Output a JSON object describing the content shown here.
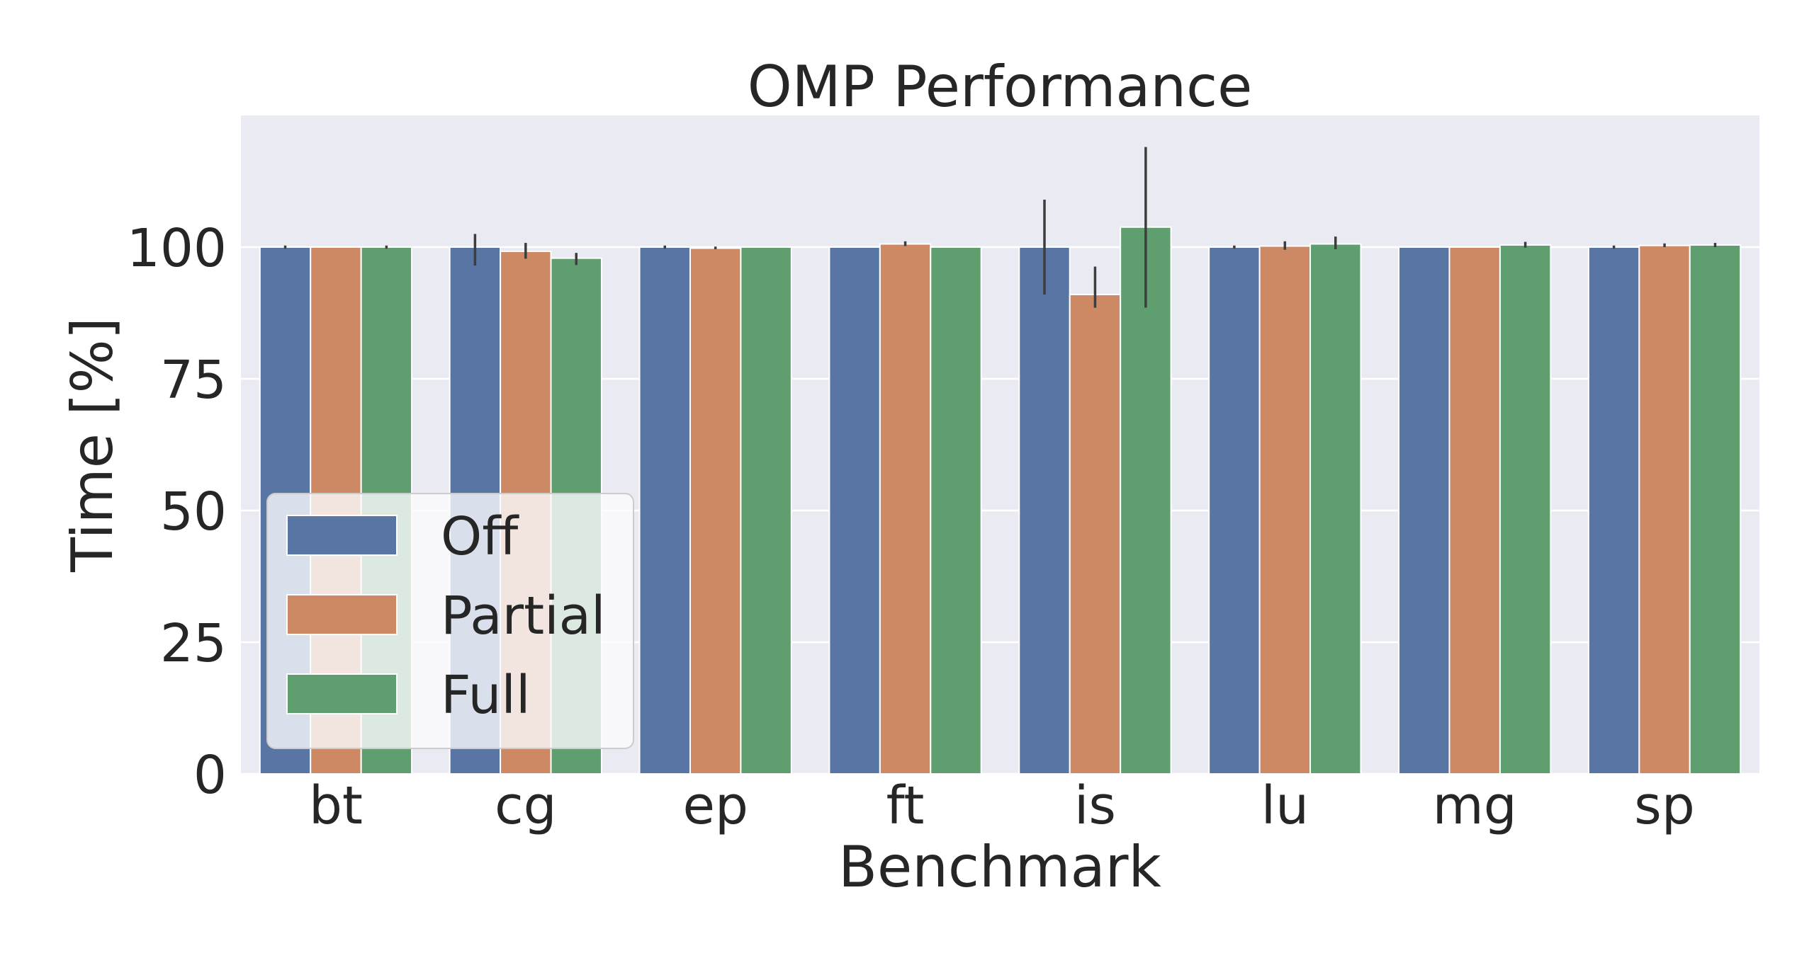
{
  "chart_data": {
    "type": "bar",
    "title": "OMP Performance",
    "xlabel": "Benchmark",
    "ylabel": "Time [%]",
    "categories": [
      "bt",
      "cg",
      "ep",
      "ft",
      "is",
      "lu",
      "mg",
      "sp"
    ],
    "ylim": [
      0,
      125
    ],
    "yticks": [
      0,
      25,
      50,
      75,
      100
    ],
    "grid": true,
    "legend_position": "center-left",
    "series": [
      {
        "name": "Off",
        "color": "#5875a4",
        "values": [
          100,
          100,
          100,
          100,
          100,
          100,
          100,
          100
        ],
        "err_low": [
          99.7,
          96.5,
          99.7,
          100,
          91,
          99.7,
          100,
          99.7
        ],
        "err_high": [
          100.3,
          102.5,
          100.3,
          100,
          109,
          100.3,
          100,
          100.3
        ]
      },
      {
        "name": "Partial",
        "color": "#cc8963",
        "values": [
          100,
          99.2,
          99.8,
          100.6,
          91,
          100.2,
          100,
          100.3
        ],
        "err_low": [
          100,
          97.8,
          99.6,
          100.2,
          88.5,
          99.5,
          100,
          100
        ],
        "err_high": [
          100,
          100.8,
          100.1,
          101.1,
          96.3,
          101.1,
          100,
          100.7
        ]
      },
      {
        "name": "Full",
        "color": "#5f9e6e",
        "values": [
          100,
          97.9,
          100,
          100,
          103.8,
          100.6,
          100.4,
          100.4
        ],
        "err_low": [
          99.7,
          96.6,
          100,
          100,
          88.5,
          99.6,
          99.9,
          100
        ],
        "err_high": [
          100.3,
          98.9,
          100,
          100,
          119,
          102,
          101,
          100.8
        ]
      }
    ]
  }
}
